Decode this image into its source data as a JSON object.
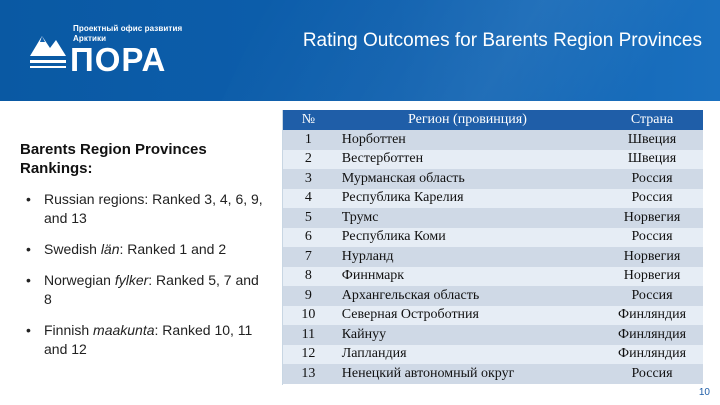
{
  "header": {
    "logo_subtitle": "Проектный офис развития Арктики",
    "logo_name": "ПОРА",
    "title": "Rating Outcomes for Barents Region Provinces"
  },
  "left": {
    "subtitle": "Barents Region Provinces Rankings:",
    "bullet_char": "•",
    "bullets": [
      {
        "pre": "Russian regions: Ranked 3, 4, 6, 9, and 13",
        "em": "",
        "post": ""
      },
      {
        "pre": "Swedish ",
        "em": "län",
        "post": ": Ranked 1 and 2"
      },
      {
        "pre": "Norwegian ",
        "em": "fylker",
        "post": ": Ranked 5, 7 and 8"
      },
      {
        "pre": "Finnish ",
        "em": "maakunta",
        "post": ": Ranked 10, 11 and 12"
      }
    ]
  },
  "table": {
    "headers": {
      "num": "№",
      "region": "Регион (провинция)",
      "country": "Страна"
    },
    "rows": [
      {
        "num": "1",
        "region": "Норботтен",
        "country": "Швеция"
      },
      {
        "num": "2",
        "region": "Вестерботтен",
        "country": "Швеция"
      },
      {
        "num": "3",
        "region": "Мурманская область",
        "country": "Россия"
      },
      {
        "num": "4",
        "region": "Республика Карелия",
        "country": "Россия"
      },
      {
        "num": "5",
        "region": "Трумс",
        "country": "Норвегия"
      },
      {
        "num": "6",
        "region": "Республика Коми",
        "country": "Россия"
      },
      {
        "num": "7",
        "region": "Нурланд",
        "country": "Норвегия"
      },
      {
        "num": "8",
        "region": "Финнмарк",
        "country": "Норвегия"
      },
      {
        "num": "9",
        "region": "Архангельская область",
        "country": "Россия"
      },
      {
        "num": "10",
        "region": "Северная Остроботния",
        "country": "Финляндия"
      },
      {
        "num": "11",
        "region": "Кайнуу",
        "country": "Финляндия"
      },
      {
        "num": "12",
        "region": "Лапландия",
        "country": "Финляндия"
      },
      {
        "num": "13",
        "region": "Ненецкий автономный округ",
        "country": "Россия"
      }
    ]
  },
  "footer": {
    "page_number": "10"
  },
  "colors": {
    "header_blue": "#0d5fae",
    "table_header": "#1f5ea8",
    "row_odd": "#cfd9e6",
    "row_even": "#e6edf5"
  }
}
